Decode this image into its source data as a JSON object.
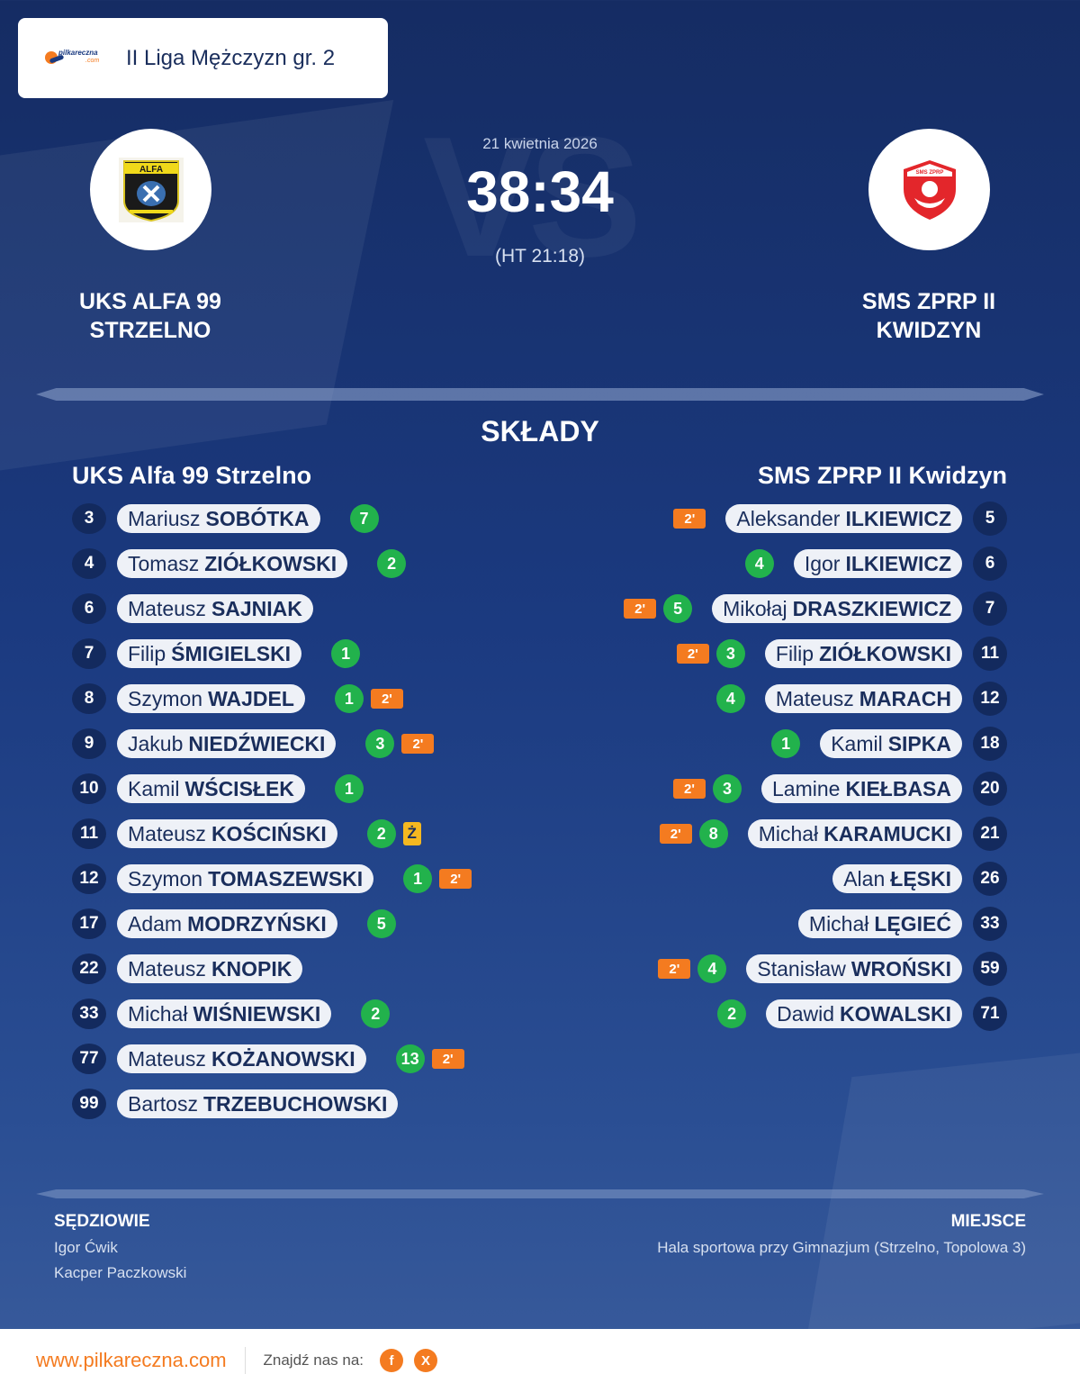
{
  "league": {
    "name": "II Liga Mężczyzn gr. 2",
    "logo_text": "pilkareczna",
    "logo_sub": ".com"
  },
  "match": {
    "date": "21 kwietnia 2026",
    "score": "38:34",
    "halftime": "(HT 21:18)",
    "home_team": "UKS ALFA 99\nSTRZELNO",
    "home_team_line1": "UKS ALFA 99",
    "home_team_line2": "STRZELNO",
    "away_team_line1": "SMS ZPRP II",
    "away_team_line2": "KWIDZYN"
  },
  "lineups": {
    "title": "SKŁADY",
    "home_title": "UKS Alfa 99 Strzelno",
    "away_title": "SMS ZPRP II Kwidzyn",
    "home": [
      {
        "num": "3",
        "first": "Mariusz",
        "last": "SOBÓTKA",
        "goals": "7",
        "susp": "",
        "yellow": ""
      },
      {
        "num": "4",
        "first": "Tomasz",
        "last": "ZIÓŁKOWSKI",
        "goals": "2",
        "susp": "",
        "yellow": ""
      },
      {
        "num": "6",
        "first": "Mateusz",
        "last": "SAJNIAK",
        "goals": "",
        "susp": "",
        "yellow": ""
      },
      {
        "num": "7",
        "first": "Filip",
        "last": "ŚMIGIELSKI",
        "goals": "1",
        "susp": "",
        "yellow": ""
      },
      {
        "num": "8",
        "first": "Szymon",
        "last": "WAJDEL",
        "goals": "1",
        "susp": "2'",
        "yellow": ""
      },
      {
        "num": "9",
        "first": "Jakub",
        "last": "NIEDŹWIECKI",
        "goals": "3",
        "susp": "2'",
        "yellow": ""
      },
      {
        "num": "10",
        "first": "Kamil",
        "last": "WŚCISŁEK",
        "goals": "1",
        "susp": "",
        "yellow": ""
      },
      {
        "num": "11",
        "first": "Mateusz",
        "last": "KOŚCIŃSKI",
        "goals": "2",
        "susp": "",
        "yellow": "Ż"
      },
      {
        "num": "12",
        "first": "Szymon",
        "last": "TOMASZEWSKI",
        "goals": "1",
        "susp": "2'",
        "yellow": ""
      },
      {
        "num": "17",
        "first": "Adam",
        "last": "MODRZYŃSKI",
        "goals": "5",
        "susp": "",
        "yellow": ""
      },
      {
        "num": "22",
        "first": "Mateusz",
        "last": "KNOPIK",
        "goals": "",
        "susp": "",
        "yellow": ""
      },
      {
        "num": "33",
        "first": "Michał",
        "last": "WIŚNIEWSKI",
        "goals": "2",
        "susp": "",
        "yellow": ""
      },
      {
        "num": "77",
        "first": "Mateusz",
        "last": "KOŻANOWSKI",
        "goals": "13",
        "susp": "2'",
        "yellow": ""
      },
      {
        "num": "99",
        "first": "Bartosz",
        "last": "TRZEBUCHOWSKI",
        "goals": "",
        "susp": "",
        "yellow": ""
      }
    ],
    "away": [
      {
        "num": "5",
        "first": "Aleksander",
        "last": "ILKIEWICZ",
        "goals": "",
        "susp": "2'"
      },
      {
        "num": "6",
        "first": "Igor",
        "last": "ILKIEWICZ",
        "goals": "4",
        "susp": ""
      },
      {
        "num": "7",
        "first": "Mikołaj",
        "last": "DRASZKIEWICZ",
        "goals": "5",
        "susp": "2'"
      },
      {
        "num": "11",
        "first": "Filip",
        "last": "ZIÓŁKOWSKI",
        "goals": "3",
        "susp": "2'"
      },
      {
        "num": "12",
        "first": "Mateusz",
        "last": "MARACH",
        "goals": "4",
        "susp": ""
      },
      {
        "num": "18",
        "first": "Kamil",
        "last": "SIPKA",
        "goals": "1",
        "susp": ""
      },
      {
        "num": "20",
        "first": "Lamine",
        "last": "KIEŁBASA",
        "goals": "3",
        "susp": "2'"
      },
      {
        "num": "21",
        "first": "Michał",
        "last": "KARAMUCKI",
        "goals": "8",
        "susp": "2'"
      },
      {
        "num": "26",
        "first": "Alan",
        "last": "ŁĘSKI",
        "goals": "",
        "susp": ""
      },
      {
        "num": "33",
        "first": "Michał",
        "last": "LĘGIEĆ",
        "goals": "",
        "susp": ""
      },
      {
        "num": "59",
        "first": "Stanisław",
        "last": "WROŃSKI",
        "goals": "4",
        "susp": "2'"
      },
      {
        "num": "71",
        "first": "Dawid",
        "last": "KOWALSKI",
        "goals": "2",
        "susp": ""
      }
    ]
  },
  "officials": {
    "title": "SĘDZIOWIE",
    "referees": [
      "Igor Ćwik",
      "Kacper Paczkowski"
    ]
  },
  "venue": {
    "title": "MIEJSCE",
    "name": "Hala sportowa przy Gimnazjum (Strzelno, Topolowa 3)"
  },
  "footer": {
    "url": "www.pilkareczna.com",
    "find_us": "Znajdź nas na:",
    "social": [
      {
        "icon": "facebook-icon",
        "glyph": "f"
      },
      {
        "icon": "x-icon",
        "glyph": "X"
      }
    ]
  },
  "colors": {
    "accent": "#f47b20",
    "goal": "#22b24c",
    "yellow_card": "#f5b820",
    "navy": "#152c63"
  }
}
